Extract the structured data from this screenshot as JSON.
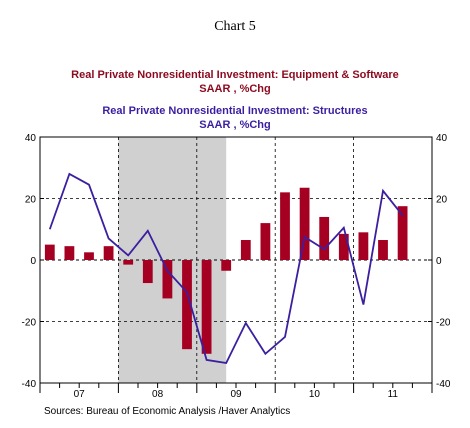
{
  "header": {
    "chart_number": "Chart 5",
    "series1_title": "Real Private Nonresidential Investment: Equipment & Software",
    "series1_units": "SAAR , %Chg",
    "series2_title": "Real Private Nonresidential Investment: Structures",
    "series2_units": "SAAR , %Chg"
  },
  "footer": {
    "source": "Sources:  Bureau of Economic Analysis /Haver Analytics"
  },
  "colors": {
    "bar_fill": "#a50021",
    "line": "#3b1fa0",
    "recession_shade": "#d0d0d0",
    "title1": "#8b0a1e",
    "title2": "#3b1fa0"
  },
  "chart_data": {
    "type": "bar",
    "categories": [
      "2007Q1",
      "2007Q2",
      "2007Q3",
      "2007Q4",
      "2008Q1",
      "2008Q2",
      "2008Q3",
      "2008Q4",
      "2009Q1",
      "2009Q2",
      "2009Q3",
      "2009Q4",
      "2010Q1",
      "2010Q2",
      "2010Q3",
      "2010Q4",
      "2011Q1",
      "2011Q2",
      "2011Q3"
    ],
    "series": [
      {
        "name": "Real Private Nonresidential Investment: Equipment & Software",
        "type": "bar",
        "values": [
          5,
          4.5,
          2.5,
          4.5,
          -1.5,
          -7.5,
          -12.5,
          -29,
          -30.5,
          -3.5,
          6.5,
          12,
          22,
          23.5,
          14,
          8.5,
          9,
          6.5,
          17.5
        ]
      },
      {
        "name": "Real Private Nonresidential Investment: Structures",
        "type": "line",
        "values": [
          10,
          28,
          24.5,
          7,
          1.5,
          9.5,
          -3.5,
          -10.5,
          -32.5,
          -33.5,
          -20.5,
          -30.5,
          -25,
          7.5,
          3.5,
          10.5,
          -14.5,
          22.5,
          14.5
        ]
      }
    ],
    "x_tick_labels": [
      "07",
      "08",
      "09",
      "10",
      "11"
    ],
    "recession_shading": {
      "start_category": "2008Q1",
      "end_category": "2009Q2"
    },
    "ylim": [
      -40,
      40
    ],
    "y_ticks": [
      -40,
      -20,
      0,
      20,
      40
    ],
    "y_axis": "both sides",
    "grid": "dashed"
  }
}
